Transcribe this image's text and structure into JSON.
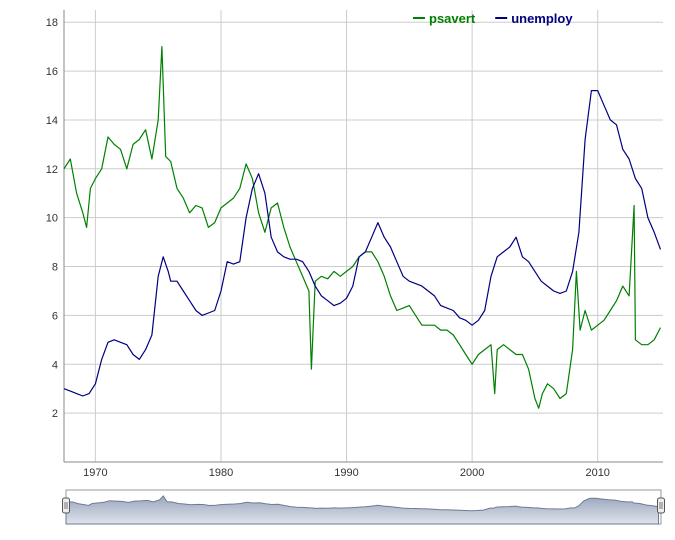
{
  "chart_data": {
    "type": "line",
    "xlim": [
      1967.5,
      2015.2
    ],
    "ylim": [
      0,
      18.5
    ],
    "grid": true,
    "legend_placement": "top-right",
    "x_ticks": [
      "1970",
      "1980",
      "1990",
      "2000",
      "2010"
    ],
    "x_tick_values": [
      1970,
      1980,
      1990,
      2000,
      2010
    ],
    "y_ticks": [
      "2",
      "4",
      "6",
      "8",
      "10",
      "12",
      "14",
      "16",
      "18"
    ],
    "y_tick_values": [
      2,
      4,
      6,
      8,
      10,
      12,
      14,
      16,
      18
    ],
    "has_range_selector": true,
    "series": [
      {
        "name": "psavert",
        "color": "#008000",
        "x": [
          1967.5,
          1968.0,
          1968.5,
          1969.0,
          1969.3,
          1969.6,
          1970.0,
          1970.5,
          1971.0,
          1971.5,
          1972.0,
          1972.5,
          1973.0,
          1973.5,
          1974.0,
          1974.5,
          1975.0,
          1975.3,
          1975.6,
          1976.0,
          1976.5,
          1977.0,
          1977.5,
          1978.0,
          1978.5,
          1979.0,
          1979.5,
          1980.0,
          1980.5,
          1981.0,
          1981.5,
          1982.0,
          1982.5,
          1983.0,
          1983.5,
          1984.0,
          1984.5,
          1985.0,
          1985.5,
          1986.0,
          1986.5,
          1987.0,
          1987.2,
          1987.5,
          1988.0,
          1988.5,
          1989.0,
          1989.5,
          1990.0,
          1990.5,
          1991.0,
          1991.5,
          1992.0,
          1992.5,
          1993.0,
          1993.5,
          1994.0,
          1994.5,
          1995.0,
          1995.5,
          1996.0,
          1996.5,
          1997.0,
          1997.5,
          1998.0,
          1998.5,
          1999.0,
          1999.5,
          2000.0,
          2000.5,
          2001.0,
          2001.5,
          2001.8,
          2002.0,
          2002.5,
          2003.0,
          2003.5,
          2004.0,
          2004.5,
          2005.0,
          2005.3,
          2005.6,
          2006.0,
          2006.5,
          2007.0,
          2007.5,
          2008.0,
          2008.3,
          2008.6,
          2009.0,
          2009.5,
          2010.0,
          2010.5,
          2011.0,
          2011.5,
          2012.0,
          2012.5,
          2012.9,
          2013.0,
          2013.5,
          2014.0,
          2014.5,
          2015.0
        ],
        "values": [
          12.0,
          12.4,
          11.0,
          10.2,
          9.6,
          11.2,
          11.6,
          12.0,
          13.3,
          13.0,
          12.8,
          12.0,
          13.0,
          13.2,
          13.6,
          12.4,
          14.0,
          17.0,
          12.5,
          12.3,
          11.2,
          10.8,
          10.2,
          10.5,
          10.4,
          9.6,
          9.8,
          10.4,
          10.6,
          10.8,
          11.2,
          12.2,
          11.6,
          10.2,
          9.4,
          10.4,
          10.6,
          9.6,
          8.8,
          8.2,
          7.6,
          7.0,
          3.8,
          7.4,
          7.6,
          7.5,
          7.8,
          7.6,
          7.8,
          8.0,
          8.4,
          8.6,
          8.6,
          8.2,
          7.6,
          6.8,
          6.2,
          6.3,
          6.4,
          6.0,
          5.6,
          5.6,
          5.6,
          5.4,
          5.4,
          5.2,
          4.8,
          4.4,
          4.0,
          4.4,
          4.6,
          4.8,
          2.8,
          4.6,
          4.8,
          4.6,
          4.4,
          4.4,
          3.8,
          2.6,
          2.2,
          2.8,
          3.2,
          3.0,
          2.6,
          2.8,
          4.6,
          7.8,
          5.4,
          6.2,
          5.4,
          5.6,
          5.8,
          6.2,
          6.6,
          7.2,
          6.8,
          10.5,
          5.0,
          4.8,
          4.8,
          5.0,
          5.5
        ]
      },
      {
        "name": "unemploy",
        "color": "#000080",
        "x": [
          1967.5,
          1968.0,
          1968.5,
          1969.0,
          1969.5,
          1970.0,
          1970.5,
          1971.0,
          1971.5,
          1972.0,
          1972.5,
          1973.0,
          1973.5,
          1974.0,
          1974.5,
          1975.0,
          1975.4,
          1975.8,
          1976.0,
          1976.5,
          1977.0,
          1977.5,
          1978.0,
          1978.5,
          1979.0,
          1979.5,
          1980.0,
          1980.5,
          1981.0,
          1981.5,
          1982.0,
          1982.5,
          1983.0,
          1983.5,
          1984.0,
          1984.5,
          1985.0,
          1985.5,
          1986.0,
          1986.5,
          1987.0,
          1987.5,
          1988.0,
          1988.5,
          1989.0,
          1989.5,
          1990.0,
          1990.5,
          1991.0,
          1991.5,
          1992.0,
          1992.5,
          1993.0,
          1993.5,
          1994.0,
          1994.5,
          1995.0,
          1995.5,
          1996.0,
          1996.5,
          1997.0,
          1997.5,
          1998.0,
          1998.5,
          1999.0,
          1999.5,
          2000.0,
          2000.5,
          2001.0,
          2001.5,
          2002.0,
          2002.5,
          2003.0,
          2003.5,
          2004.0,
          2004.5,
          2005.0,
          2005.5,
          2006.0,
          2006.5,
          2007.0,
          2007.5,
          2008.0,
          2008.5,
          2009.0,
          2009.5,
          2010.0,
          2010.5,
          2011.0,
          2011.5,
          2012.0,
          2012.5,
          2013.0,
          2013.5,
          2014.0,
          2014.5,
          2015.0
        ],
        "values": [
          3.0,
          2.9,
          2.8,
          2.7,
          2.8,
          3.2,
          4.2,
          4.9,
          5.0,
          4.9,
          4.8,
          4.4,
          4.2,
          4.6,
          5.2,
          7.6,
          8.4,
          7.8,
          7.4,
          7.4,
          7.0,
          6.6,
          6.2,
          6.0,
          6.1,
          6.2,
          7.0,
          8.2,
          8.1,
          8.2,
          10.0,
          11.2,
          11.8,
          11.0,
          9.2,
          8.6,
          8.4,
          8.3,
          8.3,
          8.2,
          7.8,
          7.2,
          6.8,
          6.6,
          6.4,
          6.5,
          6.7,
          7.2,
          8.4,
          8.6,
          9.2,
          9.8,
          9.2,
          8.8,
          8.2,
          7.6,
          7.4,
          7.3,
          7.2,
          7.0,
          6.8,
          6.4,
          6.3,
          6.2,
          5.9,
          5.8,
          5.6,
          5.8,
          6.2,
          7.6,
          8.4,
          8.6,
          8.8,
          9.2,
          8.4,
          8.2,
          7.8,
          7.4,
          7.2,
          7.0,
          6.9,
          7.0,
          7.8,
          9.4,
          13.2,
          15.2,
          15.2,
          14.6,
          14.0,
          13.8,
          12.8,
          12.4,
          11.6,
          11.2,
          10.0,
          9.4,
          8.7
        ]
      }
    ]
  }
}
